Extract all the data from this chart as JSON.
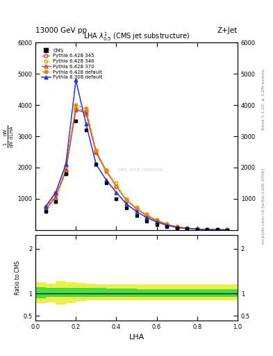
{
  "title_top": "13000 GeV pp",
  "title_right": "Z+Jet",
  "plot_title": "LHA $\\lambda^1_{0.5}$ (CMS jet substructure)",
  "xlabel": "LHA",
  "ylabel_ratio": "Ratio to CMS",
  "right_label_top": "Rivet 3.1.10, ≥ 3.2M events",
  "right_label_bottom": "mcplots.cern.ch [arXiv:1306.3436]",
  "cms_watermark": "CMS_2018_I1680318",
  "x_points": [
    0.05,
    0.1,
    0.15,
    0.2,
    0.25,
    0.3,
    0.35,
    0.4,
    0.45,
    0.5,
    0.55,
    0.6,
    0.65,
    0.7,
    0.75,
    0.8,
    0.85,
    0.9,
    0.95
  ],
  "cms_y": [
    600,
    900,
    1800,
    3500,
    3200,
    2100,
    1500,
    1000,
    700,
    450,
    280,
    170,
    100,
    55,
    30,
    15,
    8,
    4,
    2
  ],
  "p6_345_y": [
    700,
    1100,
    1900,
    3900,
    3800,
    2500,
    1900,
    1400,
    950,
    680,
    470,
    300,
    180,
    95,
    55,
    28,
    14,
    7,
    3
  ],
  "p6_346_y": [
    600,
    950,
    1800,
    3900,
    3700,
    2500,
    1900,
    1500,
    1000,
    720,
    500,
    330,
    200,
    105,
    60,
    30,
    15,
    8,
    3
  ],
  "p6_370_y": [
    650,
    1050,
    1900,
    3850,
    3750,
    2480,
    1880,
    1400,
    950,
    680,
    460,
    295,
    175,
    90,
    52,
    26,
    13,
    7,
    3
  ],
  "p6_def_y": [
    750,
    1200,
    2050,
    4000,
    3900,
    2550,
    1900,
    1400,
    960,
    690,
    475,
    305,
    183,
    97,
    56,
    28,
    14,
    7,
    3
  ],
  "p8_def_y": [
    750,
    1200,
    2100,
    4800,
    3400,
    2100,
    1600,
    1200,
    830,
    590,
    400,
    255,
    150,
    78,
    45,
    22,
    11,
    6,
    2
  ],
  "ylim_main": [
    0,
    6000
  ],
  "xlim": [
    0,
    1
  ],
  "yticks_main": [
    1000,
    2000,
    3000,
    4000,
    5000,
    6000
  ],
  "ratio_x_edges": [
    0.0,
    0.05,
    0.1,
    0.15,
    0.2,
    0.25,
    0.3,
    0.35,
    0.4,
    0.45,
    0.5,
    0.55,
    0.6,
    0.65,
    0.7,
    0.75,
    0.8,
    0.85,
    0.9,
    0.95,
    1.0
  ],
  "ratio_green_upper": [
    1.15,
    1.12,
    1.13,
    1.12,
    1.12,
    1.12,
    1.12,
    1.11,
    1.11,
    1.11,
    1.1,
    1.1,
    1.1,
    1.1,
    1.1,
    1.1,
    1.1,
    1.1,
    1.1,
    1.1
  ],
  "ratio_green_lower": [
    0.9,
    0.92,
    0.92,
    0.92,
    0.92,
    0.93,
    0.93,
    0.93,
    0.93,
    0.93,
    0.93,
    0.93,
    0.93,
    0.93,
    0.93,
    0.93,
    0.93,
    0.93,
    0.93,
    0.93
  ],
  "ratio_yellow_upper": [
    1.25,
    1.22,
    1.28,
    1.25,
    1.23,
    1.22,
    1.21,
    1.2,
    1.2,
    1.2,
    1.2,
    1.2,
    1.2,
    1.2,
    1.2,
    1.2,
    1.2,
    1.2,
    1.2,
    1.2
  ],
  "ratio_yellow_lower": [
    0.78,
    0.8,
    0.75,
    0.78,
    0.83,
    0.84,
    0.84,
    0.84,
    0.84,
    0.84,
    0.84,
    0.84,
    0.84,
    0.84,
    0.84,
    0.84,
    0.84,
    0.84,
    0.84,
    0.84
  ],
  "color_p6_345": "#dd4444",
  "color_p6_346": "#bbaa00",
  "color_p6_370": "#cc3333",
  "color_p6_def": "#ee8800",
  "color_p8_def": "#2233dd",
  "color_cms": "#000000",
  "color_green": "#44dd44",
  "color_yellow": "#eeee44"
}
